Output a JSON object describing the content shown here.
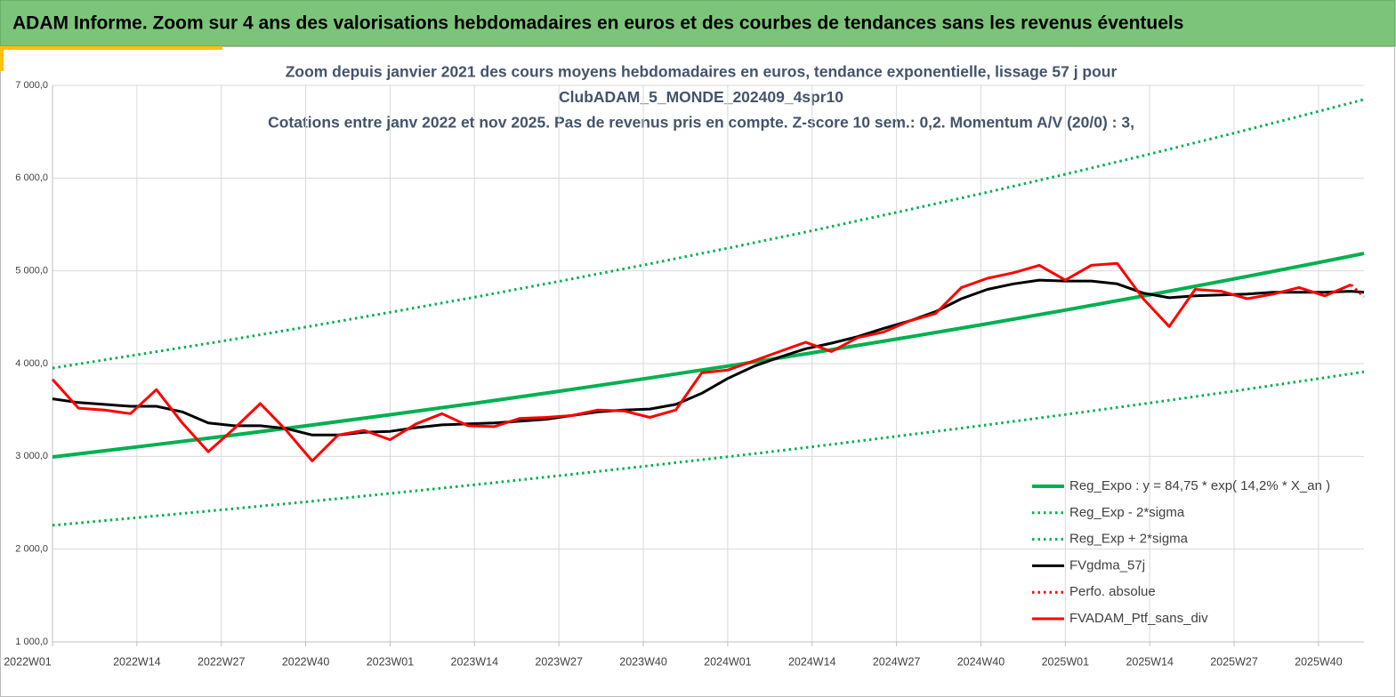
{
  "header": {
    "title": "ADAM Informe. Zoom sur 4 ans des valorisations hebdomadaires en euros et des courbes de tendances sans les revenus éventuels"
  },
  "chart_data": {
    "type": "line",
    "title": [
      "Zoom depuis janvier 2021 des cours moyens hebdomadaires  en euros, tendance exponentielle, lissage 57 j pour",
      "ClubADAM_5_MONDE_202409_4spr10",
      "Cotations entre janv 2022 et nov 2025. Pas de revenus pris en compte. Z-score 10 sem.: 0,2. Momentum A/V (20/0) : 3,"
    ],
    "xlim": [
      0,
      202
    ],
    "ylim": [
      1000,
      7000
    ],
    "grid": true,
    "xticks": [
      {
        "value": 0,
        "label": "2022W01"
      },
      {
        "value": 13,
        "label": "2022W14"
      },
      {
        "value": 26,
        "label": "2022W27"
      },
      {
        "value": 39,
        "label": "2022W40"
      },
      {
        "value": 52,
        "label": "2023W01"
      },
      {
        "value": 65,
        "label": "2023W14"
      },
      {
        "value": 78,
        "label": "2023W27"
      },
      {
        "value": 91,
        "label": "2023W40"
      },
      {
        "value": 104,
        "label": "2024W01"
      },
      {
        "value": 117,
        "label": "2024W14"
      },
      {
        "value": 130,
        "label": "2024W27"
      },
      {
        "value": 143,
        "label": "2024W40"
      },
      {
        "value": 156,
        "label": "2025W01"
      },
      {
        "value": 169,
        "label": "2025W14"
      },
      {
        "value": 182,
        "label": "2025W27"
      },
      {
        "value": 195,
        "label": "2025W40"
      }
    ],
    "yticks": [
      {
        "value": 1000,
        "label": "1 000,0"
      },
      {
        "value": 2000,
        "label": "2 000,0"
      },
      {
        "value": 3000,
        "label": "3 000,0"
      },
      {
        "value": 4000,
        "label": "4 000,0"
      },
      {
        "value": 5000,
        "label": "5 000,0"
      },
      {
        "value": 6000,
        "label": "6 000,0"
      },
      {
        "value": 7000,
        "label": "7 000,0"
      }
    ],
    "x": [
      0,
      4,
      8,
      12,
      16,
      20,
      24,
      28,
      32,
      36,
      40,
      44,
      48,
      52,
      56,
      60,
      64,
      68,
      72,
      76,
      80,
      84,
      88,
      92,
      96,
      100,
      104,
      108,
      112,
      116,
      120,
      124,
      128,
      132,
      136,
      140,
      144,
      148,
      152,
      156,
      160,
      164,
      168,
      172,
      176,
      180,
      184,
      188,
      192,
      196,
      200,
      202
    ],
    "series": [
      {
        "name": "Reg_Expo : y = 84,75 * exp( 14,2% *  X_an )",
        "color": "#00b050",
        "style": "solid",
        "width": 4,
        "x": [
          0,
          13,
          26,
          39,
          52,
          65,
          78,
          91,
          104,
          117,
          130,
          143,
          156,
          169,
          182,
          195,
          202
        ],
        "values": [
          2994,
          3102,
          3213,
          3329,
          3449,
          3573,
          3702,
          3835,
          3973,
          4116,
          4265,
          4418,
          4577,
          4742,
          4913,
          5090,
          5188
        ]
      },
      {
        "name": "Reg_Exp - 2*sigma",
        "color": "#00b050",
        "style": "dotted",
        "width": 3,
        "x": [
          0,
          13,
          26,
          39,
          52,
          65,
          78,
          91,
          104,
          117,
          130,
          143,
          156,
          169,
          182,
          195,
          202
        ],
        "values": [
          2257,
          2339,
          2423,
          2510,
          2601,
          2694,
          2791,
          2892,
          2996,
          3103,
          3216,
          3331,
          3451,
          3575,
          3704,
          3838,
          3912
        ]
      },
      {
        "name": "Reg_Exp + 2*sigma",
        "color": "#00b050",
        "style": "dotted",
        "width": 3,
        "x": [
          0,
          13,
          26,
          39,
          52,
          65,
          78,
          91,
          104,
          117,
          130,
          143,
          156,
          169,
          182,
          195,
          202
        ],
        "values": [
          3952,
          4095,
          4241,
          4394,
          4553,
          4716,
          4887,
          5062,
          5244,
          5433,
          5630,
          5832,
          6042,
          6259,
          6485,
          6719,
          6848
        ]
      },
      {
        "name": "FVgdma_57j",
        "color": "#000000",
        "style": "solid",
        "width": 3,
        "values": [
          3620,
          3580,
          3560,
          3540,
          3540,
          3480,
          3360,
          3330,
          3330,
          3300,
          3230,
          3230,
          3260,
          3270,
          3310,
          3340,
          3350,
          3360,
          3380,
          3400,
          3440,
          3480,
          3500,
          3510,
          3560,
          3680,
          3840,
          3970,
          4070,
          4160,
          4220,
          4290,
          4380,
          4460,
          4560,
          4700,
          4800,
          4860,
          4900,
          4890,
          4890,
          4860,
          4760,
          4710,
          4730,
          4740,
          4750,
          4770,
          4770,
          4770,
          4780,
          4770
        ]
      },
      {
        "name": "Perfo. absolue",
        "color": "#ff0000",
        "style": "dotted",
        "width": 3,
        "values": [
          null,
          null,
          null,
          null,
          null,
          null,
          null,
          null,
          null,
          null,
          null,
          null,
          null,
          null,
          null,
          null,
          null,
          null,
          null,
          null,
          null,
          null,
          null,
          null,
          null,
          null,
          null,
          null,
          null,
          null,
          null,
          null,
          null,
          null,
          null,
          null,
          null,
          null,
          null,
          null,
          null,
          null,
          null,
          null,
          null,
          null,
          null,
          null,
          null,
          null,
          4850,
          4720
        ]
      },
      {
        "name": "FVADAM_Ptf_sans_div",
        "color": "#ff0000",
        "style": "solid",
        "width": 3,
        "values": [
          3830,
          3520,
          3500,
          3460,
          3720,
          3360,
          3050,
          3300,
          3570,
          3280,
          2950,
          3230,
          3280,
          3180,
          3350,
          3460,
          3330,
          3320,
          3410,
          3420,
          3440,
          3500,
          3490,
          3420,
          3500,
          3900,
          3930,
          4030,
          4130,
          4230,
          4130,
          4280,
          4340,
          4460,
          4540,
          4820,
          4920,
          4980,
          5060,
          4900,
          5060,
          5080,
          4700,
          4400,
          4800,
          4780,
          4700,
          4750,
          4820,
          4730,
          4850,
          null
        ]
      }
    ]
  }
}
